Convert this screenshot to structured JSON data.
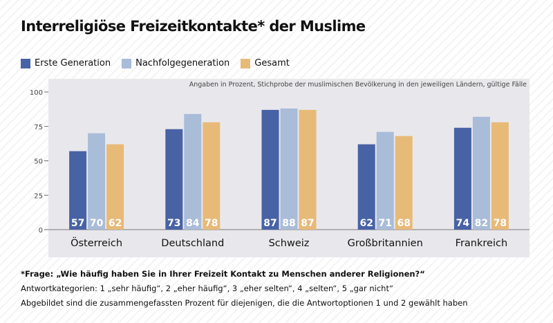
{
  "title": "Interreligiöse Freizeitkontakte* der Muslime",
  "subtitle": "Angaben in Prozent, Stichprobe der muslimischen Bevölkerung in den jeweiligen Ländern, gültige Fälle",
  "colors": {
    "erste": "#4862a6",
    "nachfolge": "#a9bcd8",
    "gesamt": "#e8ba78",
    "plot_bg": "#e8e8ec"
  },
  "chart_data": {
    "type": "bar",
    "title": "Interreligiöse Freizeitkontakte* der Muslime",
    "categories": [
      "Österreich",
      "Deutschland",
      "Schweiz",
      "Großbritannien",
      "Frankreich"
    ],
    "series": [
      {
        "name": "Erste Generation",
        "values": [
          57,
          73,
          87,
          62,
          74
        ]
      },
      {
        "name": "Nachfolgegeneration",
        "values": [
          70,
          84,
          88,
          71,
          82
        ]
      },
      {
        "name": "Gesamt",
        "values": [
          62,
          78,
          87,
          68,
          78
        ]
      }
    ],
    "ylim": [
      0,
      100
    ],
    "yticks": [
      0,
      25,
      50,
      75,
      100
    ],
    "grid": false,
    "legend": "top-left"
  },
  "legend": {
    "items": [
      {
        "label": "Erste Generation",
        "color": "#4862a6"
      },
      {
        "label": "Nachfolgegeneration",
        "color": "#a9bcd8"
      },
      {
        "label": "Gesamt",
        "color": "#e8ba78"
      }
    ]
  },
  "footnotes": {
    "question": "*Frage: „Wie häufig haben Sie in Ihrer Freizeit Kontakt zu Menschen anderer Religionen?“",
    "categories": "Antwortkategorien: 1 „sehr häufig“, 2 „eher häufig“, 3 „eher selten“, 4 „selten“, 5 „gar nicht“",
    "note": "Abgebildet sind die zusammengefassten Prozent für diejenigen, die die Antwortoptionen 1 und 2 gewählt haben"
  }
}
